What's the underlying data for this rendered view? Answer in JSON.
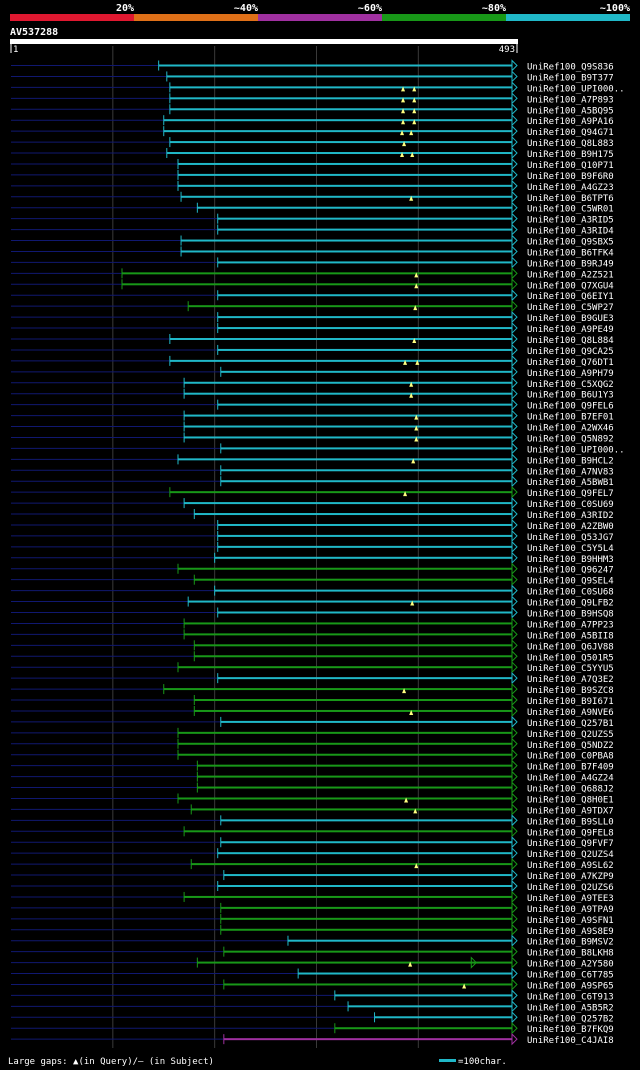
{
  "chart_data": {
    "type": "alignment-overview",
    "query_id": "AV537288",
    "query_length": 493,
    "scale_start_label": "1",
    "scale_end_label": "493",
    "identity_legend": [
      {
        "label": "",
        "color": "#e01830"
      },
      {
        "label": "20%",
        "color": "#e07018"
      },
      {
        "label": "~40%",
        "color": "#a030a0"
      },
      {
        "label": "~60%",
        "color": "#189818"
      },
      {
        "label": "~80%",
        "color": "#20b8c8"
      },
      {
        "label": "~100%",
        "color": ""
      }
    ],
    "footer_left": "Large gaps: ▲(in Query)/– (in Subject)",
    "footer_right": "=100char.",
    "hits": [
      {
        "name": "UniRef100_Q9S836",
        "start": 146,
        "color": "#20b8c8",
        "gaps": []
      },
      {
        "name": "UniRef100_B9T377",
        "start": 154,
        "color": "#20b8c8",
        "gaps": []
      },
      {
        "name": "UniRef100_UPI000..",
        "start": 157,
        "color": "#20b8c8",
        "gaps": [
          386,
          397
        ]
      },
      {
        "name": "UniRef100_A7P893",
        "start": 157,
        "color": "#20b8c8",
        "gaps": [
          386,
          397
        ]
      },
      {
        "name": "UniRef100_A5BQ95",
        "start": 157,
        "color": "#20b8c8",
        "gaps": [
          386,
          397
        ]
      },
      {
        "name": "UniRef100_A9PA16",
        "start": 151,
        "color": "#20b8c8",
        "gaps": [
          386,
          397
        ]
      },
      {
        "name": "UniRef100_Q94G71",
        "start": 151,
        "color": "#20b8c8",
        "gaps": [
          385,
          394
        ]
      },
      {
        "name": "UniRef100_Q8L883",
        "start": 157,
        "color": "#20b8c8",
        "gaps": [
          387
        ]
      },
      {
        "name": "UniRef100_B9H175",
        "start": 154,
        "color": "#20b8c8",
        "gaps": [
          385,
          395
        ]
      },
      {
        "name": "UniRef100_Q10P71",
        "start": 165,
        "color": "#20b8c8",
        "gaps": []
      },
      {
        "name": "UniRef100_B9F6R0",
        "start": 165,
        "color": "#20b8c8",
        "gaps": []
      },
      {
        "name": "UniRef100_A4GZ23",
        "start": 165,
        "color": "#20b8c8",
        "gaps": []
      },
      {
        "name": "UniRef100_B6TPT6",
        "start": 168,
        "color": "#20b8c8",
        "gaps": [
          394
        ]
      },
      {
        "name": "UniRef100_C5WR01",
        "start": 184,
        "color": "#20b8c8",
        "gaps": []
      },
      {
        "name": "UniRef100_A3RID5",
        "start": 204,
        "color": "#20b8c8",
        "gaps": []
      },
      {
        "name": "UniRef100_A3RID4",
        "start": 204,
        "color": "#20b8c8",
        "gaps": []
      },
      {
        "name": "UniRef100_Q9SBX5",
        "start": 168,
        "color": "#20b8c8",
        "gaps": []
      },
      {
        "name": "UniRef100_B6TFK4",
        "start": 168,
        "color": "#20b8c8",
        "gaps": []
      },
      {
        "name": "UniRef100_B9RJ49",
        "start": 204,
        "color": "#20b8c8",
        "gaps": []
      },
      {
        "name": "UniRef100_A2Z521",
        "start": 110,
        "color": "#189818",
        "gaps": [
          399
        ]
      },
      {
        "name": "UniRef100_Q7XGU4",
        "start": 110,
        "color": "#189818",
        "gaps": [
          399
        ]
      },
      {
        "name": "UniRef100_Q6EIY1",
        "start": 204,
        "color": "#20b8c8",
        "gaps": []
      },
      {
        "name": "UniRef100_C5WP27",
        "start": 175,
        "color": "#189818",
        "gaps": [
          398
        ]
      },
      {
        "name": "UniRef100_B9GUE3",
        "start": 204,
        "color": "#20b8c8",
        "gaps": []
      },
      {
        "name": "UniRef100_A9PE49",
        "start": 204,
        "color": "#20b8c8",
        "gaps": []
      },
      {
        "name": "UniRef100_Q8L884",
        "start": 157,
        "color": "#20b8c8",
        "gaps": [
          397
        ]
      },
      {
        "name": "UniRef100_Q9CA25",
        "start": 204,
        "color": "#20b8c8",
        "gaps": []
      },
      {
        "name": "UniRef100_Q76DT1",
        "start": 157,
        "color": "#20b8c8",
        "gaps": [
          388,
          400
        ]
      },
      {
        "name": "UniRef100_A9PH79",
        "start": 207,
        "color": "#20b8c8",
        "gaps": []
      },
      {
        "name": "UniRef100_C5XQG2",
        "start": 171,
        "color": "#20b8c8",
        "gaps": [
          394
        ]
      },
      {
        "name": "UniRef100_B6U1Y3",
        "start": 171,
        "color": "#20b8c8",
        "gaps": [
          394
        ]
      },
      {
        "name": "UniRef100_Q9FEL6",
        "start": 204,
        "color": "#20b8c8",
        "gaps": []
      },
      {
        "name": "UniRef100_B7EF01",
        "start": 171,
        "color": "#20b8c8",
        "gaps": [
          399
        ]
      },
      {
        "name": "UniRef100_A2WX46",
        "start": 171,
        "color": "#20b8c8",
        "gaps": [
          399
        ]
      },
      {
        "name": "UniRef100_Q5N892",
        "start": 171,
        "color": "#20b8c8",
        "gaps": [
          399
        ]
      },
      {
        "name": "UniRef100_UPI000..",
        "start": 207,
        "color": "#20b8c8",
        "gaps": []
      },
      {
        "name": "UniRef100_B9HCL2",
        "start": 165,
        "color": "#20b8c8",
        "gaps": [
          396
        ]
      },
      {
        "name": "UniRef100_A7NV83",
        "start": 207,
        "color": "#20b8c8",
        "gaps": []
      },
      {
        "name": "UniRef100_A5BWB1",
        "start": 207,
        "color": "#20b8c8",
        "gaps": []
      },
      {
        "name": "UniRef100_Q9FEL7",
        "start": 157,
        "color": "#189818",
        "gaps": [
          388
        ]
      },
      {
        "name": "UniRef100_C0SU69",
        "start": 171,
        "color": "#20b8c8",
        "gaps": []
      },
      {
        "name": "UniRef100_A3RID2",
        "start": 181,
        "color": "#20b8c8",
        "gaps": []
      },
      {
        "name": "UniRef100_A2ZBW0",
        "start": 204,
        "color": "#20b8c8",
        "gaps": []
      },
      {
        "name": "UniRef100_Q53JG7",
        "start": 204,
        "color": "#20b8c8",
        "gaps": []
      },
      {
        "name": "UniRef100_C5Y5L4",
        "start": 204,
        "color": "#20b8c8",
        "gaps": []
      },
      {
        "name": "UniRef100_B9HHM3",
        "start": 201,
        "color": "#20b8c8",
        "gaps": []
      },
      {
        "name": "UniRef100_Q96247",
        "start": 165,
        "color": "#189818",
        "gaps": []
      },
      {
        "name": "UniRef100_Q9SEL4",
        "start": 181,
        "color": "#189818",
        "gaps": []
      },
      {
        "name": "UniRef100_C0SU68",
        "start": 201,
        "color": "#20b8c8",
        "gaps": []
      },
      {
        "name": "UniRef100_Q9LFB2",
        "start": 175,
        "color": "#20b8c8",
        "gaps": [
          395
        ]
      },
      {
        "name": "UniRef100_B9HSQ8",
        "start": 204,
        "color": "#20b8c8",
        "gaps": []
      },
      {
        "name": "UniRef100_A7PP23",
        "start": 171,
        "color": "#189818",
        "gaps": []
      },
      {
        "name": "UniRef100_A5BII8",
        "start": 171,
        "color": "#189818",
        "gaps": []
      },
      {
        "name": "UniRef100_Q6JV88",
        "start": 181,
        "color": "#189818",
        "gaps": []
      },
      {
        "name": "UniRef100_Q501R5",
        "start": 181,
        "color": "#189818",
        "gaps": []
      },
      {
        "name": "UniRef100_C5YYU5",
        "start": 165,
        "color": "#189818",
        "gaps": []
      },
      {
        "name": "UniRef100_A7Q3E2",
        "start": 204,
        "color": "#20b8c8",
        "gaps": []
      },
      {
        "name": "UniRef100_B9SZC8",
        "start": 151,
        "color": "#189818",
        "gaps": [
          387
        ]
      },
      {
        "name": "UniRef100_B9I671",
        "start": 181,
        "color": "#189818",
        "gaps": []
      },
      {
        "name": "UniRef100_A9NVE6",
        "start": 181,
        "color": "#189818",
        "gaps": [
          394
        ]
      },
      {
        "name": "UniRef100_Q257B1",
        "start": 207,
        "color": "#20b8c8",
        "gaps": []
      },
      {
        "name": "UniRef100_Q2UZS5",
        "start": 165,
        "color": "#189818",
        "gaps": []
      },
      {
        "name": "UniRef100_Q5NDZ2",
        "start": 165,
        "color": "#189818",
        "gaps": []
      },
      {
        "name": "UniRef100_C0PBA8",
        "start": 165,
        "color": "#189818",
        "gaps": []
      },
      {
        "name": "UniRef100_B7F409",
        "start": 184,
        "color": "#189818",
        "gaps": []
      },
      {
        "name": "UniRef100_A4GZ24",
        "start": 184,
        "color": "#189818",
        "gaps": []
      },
      {
        "name": "UniRef100_Q688J2",
        "start": 184,
        "color": "#189818",
        "gaps": []
      },
      {
        "name": "UniRef100_Q8H0E1",
        "start": 165,
        "color": "#189818",
        "gaps": [
          389
        ]
      },
      {
        "name": "UniRef100_A9TDX7",
        "start": 178,
        "color": "#189818",
        "gaps": [
          398
        ]
      },
      {
        "name": "UniRef100_B9SLL0",
        "start": 207,
        "color": "#20b8c8",
        "gaps": []
      },
      {
        "name": "UniRef100_Q9FEL8",
        "start": 171,
        "color": "#189818",
        "gaps": []
      },
      {
        "name": "UniRef100_Q9FVF7",
        "start": 207,
        "color": "#20b8c8",
        "gaps": []
      },
      {
        "name": "UniRef100_Q2UZS4",
        "start": 204,
        "color": "#20b8c8",
        "gaps": []
      },
      {
        "name": "UniRef100_A9SL62",
        "start": 178,
        "color": "#189818",
        "gaps": [
          399
        ]
      },
      {
        "name": "UniRef100_A7KZP9",
        "start": 210,
        "color": "#20b8c8",
        "gaps": []
      },
      {
        "name": "UniRef100_Q2UZS6",
        "start": 204,
        "color": "#20b8c8",
        "gaps": []
      },
      {
        "name": "UniRef100_A9TEE3",
        "start": 171,
        "color": "#189818",
        "gaps": []
      },
      {
        "name": "UniRef100_A9TPA9",
        "start": 207,
        "color": "#189818",
        "gaps": []
      },
      {
        "name": "UniRef100_A9SFN1",
        "start": 207,
        "color": "#189818",
        "gaps": []
      },
      {
        "name": "UniRef100_A9S8E9",
        "start": 207,
        "color": "#189818",
        "gaps": []
      },
      {
        "name": "UniRef100_B9MSV2",
        "start": 273,
        "color": "#20b8c8",
        "gaps": []
      },
      {
        "name": "UniRef100_B8LKH8",
        "start": 210,
        "color": "#189818",
        "gaps": []
      },
      {
        "name": "UniRef100_A2Y580",
        "start": 184,
        "color": "#189818",
        "gaps": [
          393
        ],
        "mid_arrow": 453
      },
      {
        "name": "UniRef100_C6T785",
        "start": 283,
        "color": "#20b8c8",
        "gaps": []
      },
      {
        "name": "UniRef100_A9SP65",
        "start": 210,
        "color": "#189818",
        "gaps": [
          446
        ]
      },
      {
        "name": "UniRef100_C6T913",
        "start": 319,
        "color": "#20b8c8",
        "gaps": []
      },
      {
        "name": "UniRef100_A5B5R2",
        "start": 332,
        "color": "#20b8c8",
        "gaps": []
      },
      {
        "name": "UniRef100_Q257B2",
        "start": 358,
        "color": "#20b8c8",
        "gaps": []
      },
      {
        "name": "UniRef100_B7FKQ9",
        "start": 319,
        "color": "#189818",
        "gaps": []
      },
      {
        "name": "UniRef100_C4JAI8",
        "start": 210,
        "color": "#a030a0",
        "gaps": []
      }
    ]
  }
}
